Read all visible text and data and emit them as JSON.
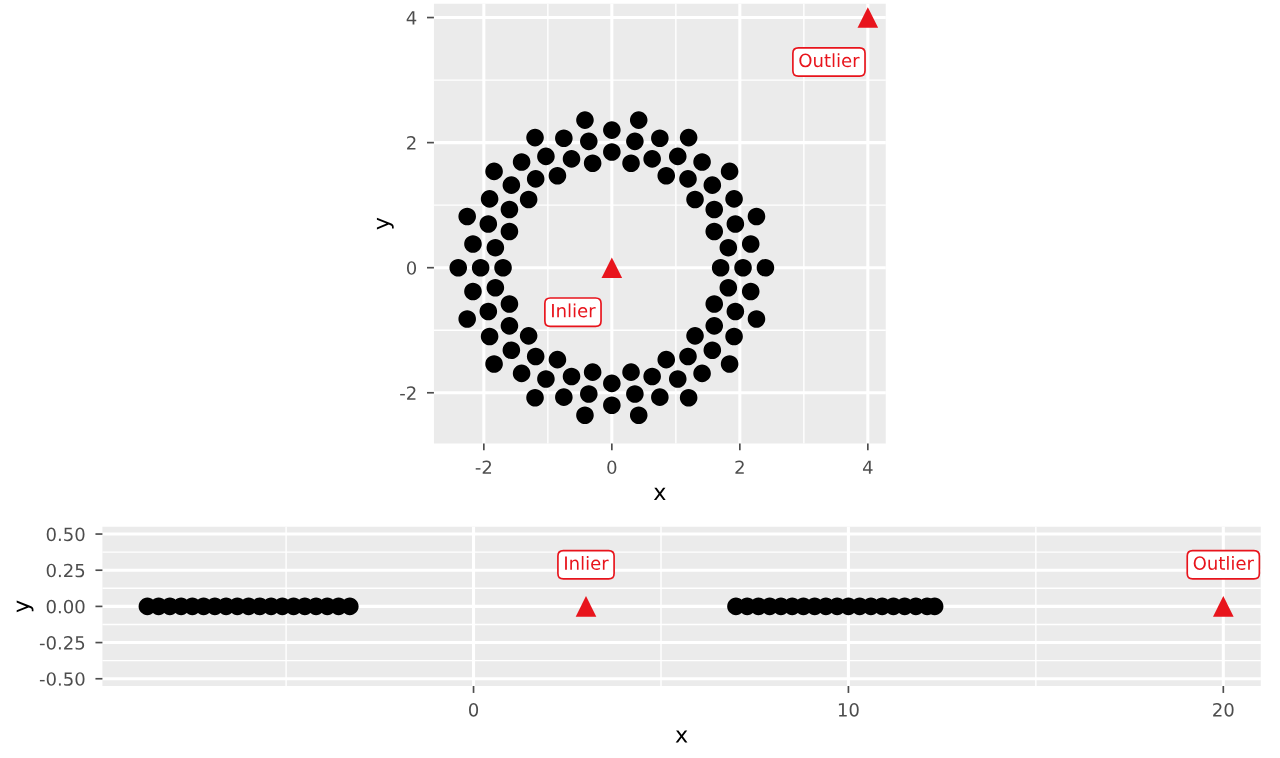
{
  "chart_data": [
    {
      "type": "scatter",
      "xlabel": "x",
      "ylabel": "y",
      "xlim": [
        -2.78,
        4.28
      ],
      "ylim": [
        -2.81,
        4.22
      ],
      "xticks": [
        -2,
        0,
        2,
        4
      ],
      "yticks": [
        -2,
        0,
        2,
        4
      ],
      "grid": true,
      "x": [
        1.7,
        1.6,
        1.3,
        0.85,
        0.3,
        -0.3,
        -0.85,
        -1.3,
        -1.6,
        -1.7,
        -1.6,
        -1.3,
        -0.85,
        -0.3,
        0.3,
        0.85,
        1.3,
        1.6,
        2.05,
        1.93,
        1.57,
        1.03,
        0.36,
        -0.36,
        -1.03,
        -1.57,
        -1.93,
        -2.05,
        -1.93,
        -1.57,
        -1.03,
        -0.36,
        0.36,
        1.03,
        1.57,
        1.93,
        2.4,
        2.26,
        1.84,
        1.2,
        0.42,
        -0.42,
        -1.2,
        -1.84,
        -2.26,
        -2.4,
        -2.26,
        -1.84,
        -1.2,
        -0.42,
        0.42,
        1.2,
        1.84,
        2.26,
        2.17,
        1.91,
        1.41,
        0.75,
        0,
        -0.75,
        -1.41,
        -1.91,
        -2.17,
        -2.17,
        -1.91,
        -1.41,
        -0.75,
        0,
        0.75,
        1.41,
        1.91,
        2.17,
        1.82,
        1.6,
        1.19,
        0.63,
        0,
        -0.63,
        -1.19,
        -1.6,
        -1.82,
        -1.82,
        -1.6,
        -1.19,
        -0.63,
        0,
        0.63,
        1.19,
        1.6,
        1.82
      ],
      "series": [
        {
          "color": "#000000",
          "marker": "circle",
          "values": [
            0,
            0.58,
            1.09,
            1.47,
            1.67,
            1.67,
            1.47,
            1.09,
            0.58,
            0,
            -0.58,
            -1.09,
            -1.47,
            -1.67,
            -1.67,
            -1.47,
            -1.09,
            -0.58,
            0,
            0.7,
            1.32,
            1.78,
            2.02,
            2.02,
            1.78,
            1.32,
            0.7,
            0,
            -0.7,
            -1.32,
            -1.78,
            -2.02,
            -2.02,
            -1.78,
            -1.32,
            -0.7,
            0,
            0.82,
            1.54,
            2.08,
            2.36,
            2.36,
            2.08,
            1.54,
            0.82,
            0,
            -0.82,
            -1.54,
            -2.08,
            -2.36,
            -2.36,
            -2.08,
            -1.54,
            -0.82,
            0.38,
            1.1,
            1.69,
            2.07,
            2.2,
            2.07,
            1.69,
            1.1,
            0.38,
            -0.38,
            -1.1,
            -1.69,
            -2.07,
            -2.2,
            -2.07,
            -1.69,
            -1.1,
            -0.38,
            0.32,
            0.93,
            1.42,
            1.74,
            1.85,
            1.74,
            1.42,
            0.93,
            0.32,
            -0.32,
            -0.93,
            -1.42,
            -1.74,
            -1.85,
            -1.74,
            -1.42,
            -0.93,
            -0.32
          ]
        },
        {
          "color": "#e8141c",
          "marker": "triangle",
          "x": [
            0,
            4
          ],
          "values": [
            0,
            4
          ]
        }
      ],
      "annotations": [
        {
          "text": "Inlier",
          "x": 0,
          "y": 0
        },
        {
          "text": "Outlier",
          "x": 4,
          "y": 4
        }
      ]
    },
    {
      "type": "scatter",
      "xlabel": "x",
      "ylabel": "y",
      "xlim": [
        -9.9,
        21.0
      ],
      "ylim": [
        -0.55,
        0.55
      ],
      "xticks": [
        0,
        10,
        20
      ],
      "yticks": [
        {
          "value": -0.5,
          "label": "-0.50"
        },
        {
          "value": -0.25,
          "label": "-0.25"
        },
        {
          "value": 0,
          "label": "0.00"
        },
        {
          "value": 0.25,
          "label": "0.25"
        },
        {
          "value": 0.5,
          "label": "0.50"
        }
      ],
      "grid": true,
      "x": [
        -8.7,
        -8.4,
        -8.1,
        -7.8,
        -7.5,
        -7.2,
        -6.9,
        -6.6,
        -6.3,
        -6.0,
        -5.7,
        -5.4,
        -5.1,
        -4.8,
        -4.5,
        -4.2,
        -3.9,
        -3.6,
        -3.3,
        7.0,
        7.3,
        7.6,
        7.9,
        8.2,
        8.5,
        8.8,
        9.1,
        9.4,
        9.7,
        10.0,
        10.3,
        10.6,
        10.9,
        11.2,
        11.5,
        11.8,
        12.1,
        12.3
      ],
      "series": [
        {
          "color": "#000000",
          "marker": "circle",
          "values": [
            0,
            0,
            0,
            0,
            0,
            0,
            0,
            0,
            0,
            0,
            0,
            0,
            0,
            0,
            0,
            0,
            0,
            0,
            0,
            0,
            0,
            0,
            0,
            0,
            0,
            0,
            0,
            0,
            0,
            0,
            0,
            0,
            0,
            0,
            0,
            0,
            0,
            0
          ]
        },
        {
          "color": "#e8141c",
          "marker": "triangle",
          "x": [
            3,
            20
          ],
          "values": [
            0,
            0
          ]
        }
      ],
      "annotations": [
        {
          "text": "Inlier",
          "x": 3,
          "y": 0
        },
        {
          "text": "Outlier",
          "x": 20,
          "y": 0
        }
      ]
    }
  ]
}
